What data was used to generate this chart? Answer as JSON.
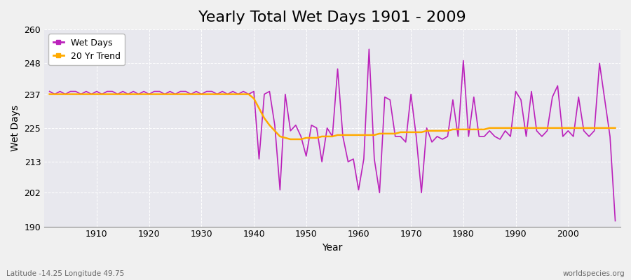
{
  "title": "Yearly Total Wet Days 1901 - 2009",
  "xlabel": "Year",
  "ylabel": "Wet Days",
  "lat_lon_label": "Latitude -14.25 Longitude 49.75",
  "source_label": "worldspecies.org",
  "years": [
    1901,
    1902,
    1903,
    1904,
    1905,
    1906,
    1907,
    1908,
    1909,
    1910,
    1911,
    1912,
    1913,
    1914,
    1915,
    1916,
    1917,
    1918,
    1919,
    1920,
    1921,
    1922,
    1923,
    1924,
    1925,
    1926,
    1927,
    1928,
    1929,
    1930,
    1931,
    1932,
    1933,
    1934,
    1935,
    1936,
    1937,
    1938,
    1939,
    1940,
    1941,
    1942,
    1943,
    1944,
    1945,
    1946,
    1947,
    1948,
    1949,
    1950,
    1951,
    1952,
    1953,
    1954,
    1955,
    1956,
    1957,
    1958,
    1959,
    1960,
    1961,
    1962,
    1963,
    1964,
    1965,
    1966,
    1967,
    1968,
    1969,
    1970,
    1971,
    1972,
    1973,
    1974,
    1975,
    1976,
    1977,
    1978,
    1979,
    1980,
    1981,
    1982,
    1983,
    1984,
    1985,
    1986,
    1987,
    1988,
    1989,
    1990,
    1991,
    1992,
    1993,
    1994,
    1995,
    1996,
    1997,
    1998,
    1999,
    2000,
    2001,
    2002,
    2003,
    2004,
    2005,
    2006,
    2007,
    2008,
    2009
  ],
  "wet_days": [
    238,
    237,
    238,
    237,
    238,
    238,
    237,
    238,
    237,
    238,
    237,
    238,
    238,
    237,
    238,
    237,
    238,
    237,
    238,
    237,
    238,
    238,
    237,
    238,
    237,
    238,
    238,
    237,
    238,
    237,
    238,
    238,
    237,
    238,
    237,
    238,
    237,
    238,
    237,
    238,
    214,
    237,
    238,
    226,
    203,
    237,
    224,
    226,
    222,
    215,
    226,
    225,
    213,
    225,
    222,
    246,
    222,
    213,
    214,
    203,
    214,
    253,
    214,
    202,
    236,
    235,
    222,
    222,
    220,
    237,
    222,
    202,
    225,
    220,
    222,
    221,
    222,
    235,
    222,
    249,
    222,
    236,
    222,
    222,
    224,
    222,
    221,
    224,
    222,
    238,
    235,
    222,
    238,
    224,
    222,
    224,
    236,
    240,
    222,
    224,
    222,
    236,
    224,
    222,
    224,
    248,
    235,
    222,
    192
  ],
  "trend_years": [
    1901,
    1902,
    1903,
    1904,
    1905,
    1906,
    1907,
    1908,
    1909,
    1910,
    1911,
    1912,
    1913,
    1914,
    1915,
    1916,
    1917,
    1918,
    1919,
    1920,
    1921,
    1922,
    1923,
    1924,
    1925,
    1926,
    1927,
    1928,
    1929,
    1930,
    1931,
    1932,
    1933,
    1934,
    1935,
    1936,
    1937,
    1938,
    1939,
    1940,
    1941,
    1942,
    1943,
    1944,
    1945,
    1946,
    1947,
    1948,
    1949,
    1950,
    1951,
    1952,
    1953,
    1954,
    1955,
    1956,
    1957,
    1958,
    1959,
    1960,
    1961,
    1962,
    1963,
    1964,
    1965,
    1966,
    1967,
    1968,
    1969,
    1970,
    1971,
    1972,
    1973,
    1974,
    1975,
    1976,
    1977,
    1978,
    1979,
    1980,
    1981,
    1982,
    1983,
    1984,
    1985,
    1986,
    1987,
    1988,
    1989,
    1990,
    1991,
    1992,
    1993,
    1994,
    1995,
    1996,
    1997,
    1998,
    1999,
    2000,
    2001,
    2002,
    2003,
    2004,
    2005,
    2006,
    2007,
    2008,
    2009
  ],
  "trend_values": [
    237.0,
    237.0,
    237.0,
    237.0,
    237.0,
    237.0,
    237.0,
    237.0,
    237.0,
    237.0,
    237.0,
    237.0,
    237.0,
    237.0,
    237.0,
    237.0,
    237.0,
    237.0,
    237.0,
    237.0,
    237.0,
    237.0,
    237.0,
    237.0,
    237.0,
    237.0,
    237.0,
    237.0,
    237.0,
    237.0,
    237.0,
    237.0,
    237.0,
    237.0,
    237.0,
    237.0,
    237.0,
    237.0,
    237.0,
    235.5,
    232.0,
    228.5,
    226.0,
    224.0,
    222.0,
    221.5,
    221.0,
    221.0,
    221.0,
    221.5,
    221.5,
    221.5,
    222.0,
    222.0,
    222.0,
    222.5,
    222.5,
    222.5,
    222.5,
    222.5,
    222.5,
    222.5,
    222.5,
    223.0,
    223.0,
    223.0,
    223.0,
    223.5,
    223.5,
    223.5,
    223.5,
    223.5,
    224.0,
    224.0,
    224.0,
    224.0,
    224.0,
    224.5,
    224.5,
    224.5,
    224.5,
    224.5,
    224.5,
    224.5,
    225.0,
    225.0,
    225.0,
    225.0,
    225.0,
    225.0,
    225.0,
    225.0,
    225.0,
    225.0,
    225.0,
    225.0,
    225.0,
    225.0,
    225.0,
    225.0,
    225.0,
    225.0,
    225.0,
    225.0,
    225.0,
    225.0,
    225.0,
    225.0,
    225.0
  ],
  "wet_days_color": "#bb22bb",
  "trend_color": "#ffaa00",
  "bg_color": "#f0f0f0",
  "plot_bg_color": "#e8e8ee",
  "grid_color": "#ffffff",
  "ylim": [
    190,
    260
  ],
  "yticks": [
    190,
    202,
    213,
    225,
    237,
    248,
    260
  ],
  "xticks": [
    1910,
    1920,
    1930,
    1940,
    1950,
    1960,
    1970,
    1980,
    1990,
    2000
  ],
  "xlim_left": 1900,
  "xlim_right": 2010,
  "title_fontsize": 16,
  "axis_fontsize": 10,
  "tick_fontsize": 9,
  "legend_fontsize": 9
}
